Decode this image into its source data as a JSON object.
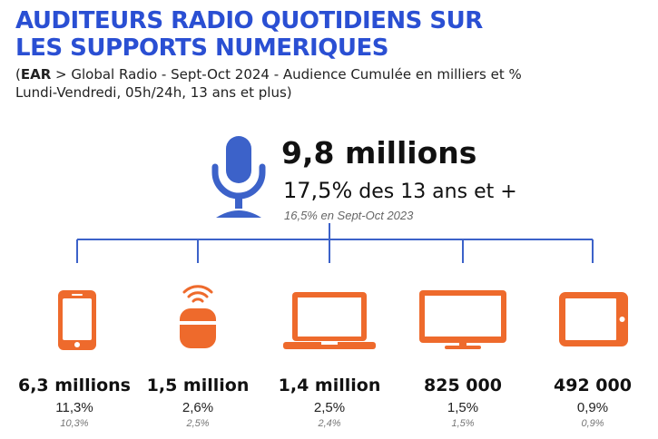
{
  "title": "AUDITEURS RADIO QUOTIDIENS SUR LES SUPPORTS NUMERIQUES",
  "subtitle": {
    "open_paren": "(",
    "source_bold": "EAR",
    "source_rest": " > Global Radio - Sept-Oct 2024 - Audience Cumulée en milliers et %",
    "line2": "Lundi-Vendredi, 05h/24h, 13 ans et plus)"
  },
  "headline": {
    "total": "9,8 millions",
    "pct": "17,5%",
    "pct_suffix": " des 13 ans et +",
    "previous": "16,5% en Sept-Oct 2023"
  },
  "colors": {
    "title_blue": "#2a4fd3",
    "icon_orange": "#ee6a2c",
    "line_blue": "#3c62c9"
  },
  "devices": [
    {
      "icon": "smartphone-icon",
      "value": "6,3 millions",
      "pct": "11,3%",
      "previous": "10,3%"
    },
    {
      "icon": "smart-speaker-icon",
      "value": "1,5 million",
      "pct": "2,6%",
      "previous": "2,5%"
    },
    {
      "icon": "laptop-icon",
      "value": "1,4 million",
      "pct": "2,5%",
      "previous": "2,4%"
    },
    {
      "icon": "television-icon",
      "value": "825 000",
      "pct": "1,5%",
      "previous": "1,5%"
    },
    {
      "icon": "tablet-icon",
      "value": "492 000",
      "pct": "0,9%",
      "previous": "0,9%"
    }
  ]
}
